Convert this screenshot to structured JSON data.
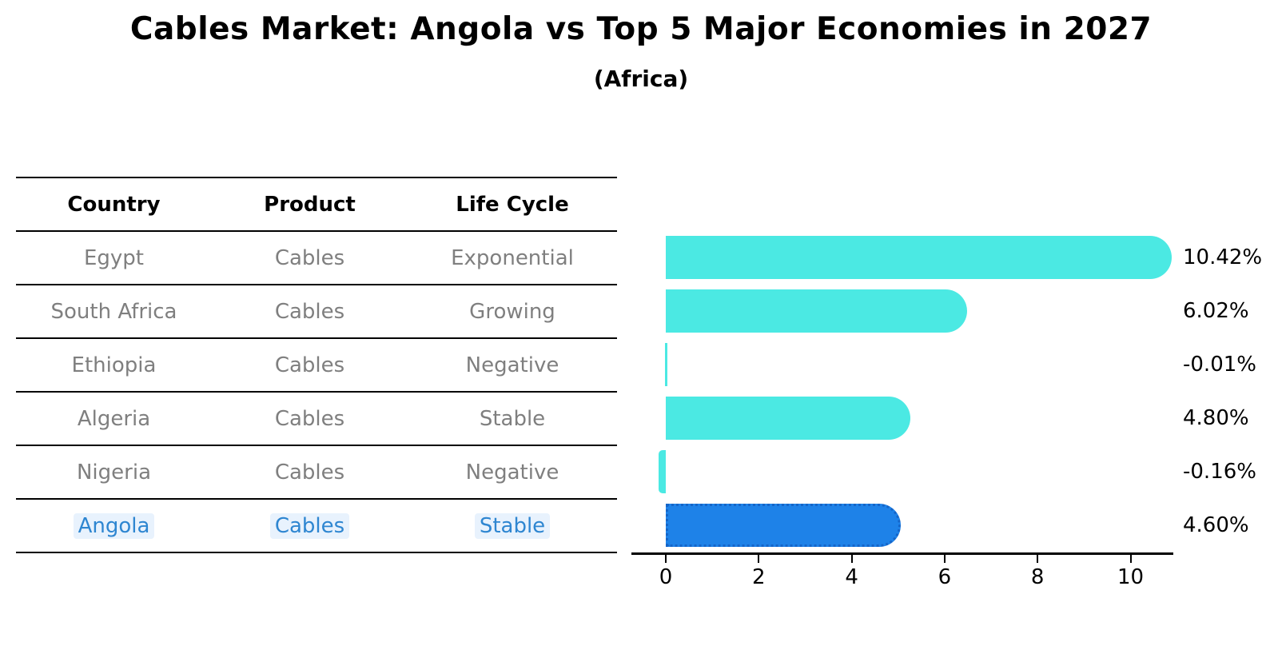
{
  "title": "Cables Market: Angola vs Top 5 Major Economies in 2027",
  "subtitle": "(Africa)",
  "table": {
    "headers": [
      "Country",
      "Product",
      "Life Cycle"
    ],
    "rows": [
      {
        "country": "Egypt",
        "product": "Cables",
        "life_cycle": "Exponential",
        "highlight": false
      },
      {
        "country": "South Africa",
        "product": "Cables",
        "life_cycle": "Growing",
        "highlight": false
      },
      {
        "country": "Ethiopia",
        "product": "Cables",
        "life_cycle": "Negative",
        "highlight": false
      },
      {
        "country": "Algeria",
        "product": "Cables",
        "life_cycle": "Stable",
        "highlight": false
      },
      {
        "country": "Nigeria",
        "product": "Cables",
        "life_cycle": "Negative",
        "highlight": false
      },
      {
        "country": "Angola",
        "product": "Cables",
        "life_cycle": "Stable",
        "highlight": true
      }
    ]
  },
  "chart_data": {
    "type": "bar",
    "orientation": "horizontal",
    "categories": [
      "Egypt",
      "South Africa",
      "Ethiopia",
      "Algeria",
      "Nigeria",
      "Angola"
    ],
    "values": [
      10.42,
      6.02,
      -0.01,
      4.8,
      -0.16,
      4.6
    ],
    "value_labels": [
      "10.42%",
      "6.02%",
      "-0.01%",
      "4.80%",
      "-0.16%",
      "4.60%"
    ],
    "x_ticks": [
      0,
      2,
      4,
      6,
      8,
      10
    ],
    "xlim": [
      -0.74,
      10.92
    ],
    "grid": false,
    "legend": "none",
    "bar_color": "#4BE9E3",
    "highlight_color": "#1E82E8",
    "highlight_border_color": "#1565C8",
    "highlight_index": 5,
    "highlight_style": "dotted-border"
  },
  "colors": {
    "table_text_gray": "#7F7F7F",
    "highlight_text_blue": "#2E86D1",
    "line_black": "#000000",
    "background": "#FFFFFF"
  }
}
